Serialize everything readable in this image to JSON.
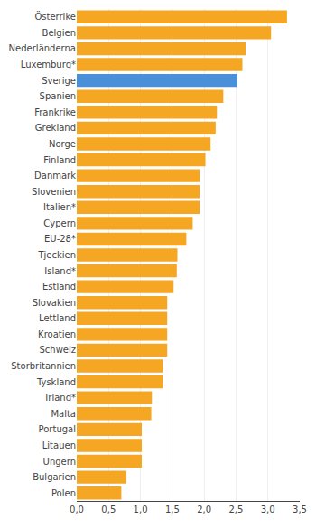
{
  "chart_data": {
    "type": "bar",
    "orientation": "horizontal",
    "categories": [
      "Österrike",
      "Belgien",
      "Nederländerna",
      "Luxemburg*",
      "Sverige",
      "Spanien",
      "Frankrike",
      "Grekland",
      "Norge",
      "Finland",
      "Danmark",
      "Slovenien",
      "Italien*",
      "Cypern",
      "EU-28*",
      "Tjeckien",
      "Island*",
      "Estland",
      "Slovakien",
      "Lettland",
      "Kroatien",
      "Schweiz",
      "Storbritannien",
      "Tyskland",
      "Irland*",
      "Malta",
      "Portugal",
      "Litauen",
      "Ungern",
      "Bulgarien",
      "Polen"
    ],
    "values": [
      3.3,
      3.05,
      2.65,
      2.6,
      2.52,
      2.3,
      2.2,
      2.18,
      2.1,
      2.02,
      1.93,
      1.93,
      1.93,
      1.82,
      1.72,
      1.58,
      1.57,
      1.52,
      1.42,
      1.42,
      1.42,
      1.42,
      1.35,
      1.35,
      1.18,
      1.17,
      1.02,
      1.02,
      1.02,
      0.78,
      0.7
    ],
    "colors": [
      "#F5A623",
      "#F5A623",
      "#F5A623",
      "#F5A623",
      "#4A90D9",
      "#F5A623",
      "#F5A623",
      "#F5A623",
      "#F5A623",
      "#F5A623",
      "#F5A623",
      "#F5A623",
      "#F5A623",
      "#F5A623",
      "#F5A623",
      "#F5A623",
      "#F5A623",
      "#F5A623",
      "#F5A623",
      "#F5A623",
      "#F5A623",
      "#F5A623",
      "#F5A623",
      "#F5A623",
      "#F5A623",
      "#F5A623",
      "#F5A623",
      "#F5A623",
      "#F5A623",
      "#F5A623",
      "#F5A623"
    ],
    "xlim": [
      0,
      3.5
    ],
    "xticks": [
      {
        "value": 0.0,
        "label": "0,0"
      },
      {
        "value": 0.5,
        "label": "0,5"
      },
      {
        "value": 1.0,
        "label": "1,0"
      },
      {
        "value": 1.5,
        "label": "1,5"
      },
      {
        "value": 2.0,
        "label": "2,0"
      },
      {
        "value": 2.5,
        "label": "2,5"
      },
      {
        "value": 3.0,
        "label": "3,0"
      },
      {
        "value": 3.5,
        "label": "3,5"
      }
    ],
    "grid": true
  }
}
